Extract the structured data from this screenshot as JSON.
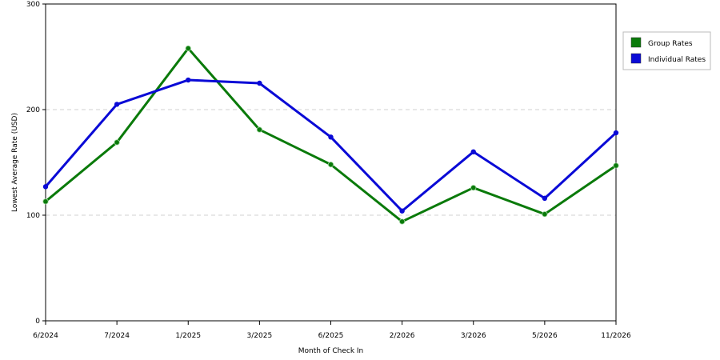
{
  "chart_data": {
    "type": "line",
    "title": "",
    "xlabel": "Month of Check In",
    "ylabel": "Lowest Average Rate (USD)",
    "categories": [
      "6/2024",
      "7/2024",
      "1/2025",
      "3/2025",
      "6/2025",
      "2/2026",
      "3/2026",
      "5/2026",
      "11/2026"
    ],
    "ylim": [
      0,
      300
    ],
    "yticks": [
      0,
      100,
      200,
      300
    ],
    "grid": "horizontal dashed",
    "legend_position": "right",
    "series": [
      {
        "name": "Group Rates",
        "color": "#0a7a0a",
        "values": [
          113,
          169,
          258,
          181,
          148,
          94,
          126,
          101,
          147
        ]
      },
      {
        "name": "Individual Rates",
        "color": "#0a0ad6",
        "values": [
          127,
          205,
          228,
          225,
          174,
          104,
          160,
          116,
          178
        ]
      }
    ]
  }
}
